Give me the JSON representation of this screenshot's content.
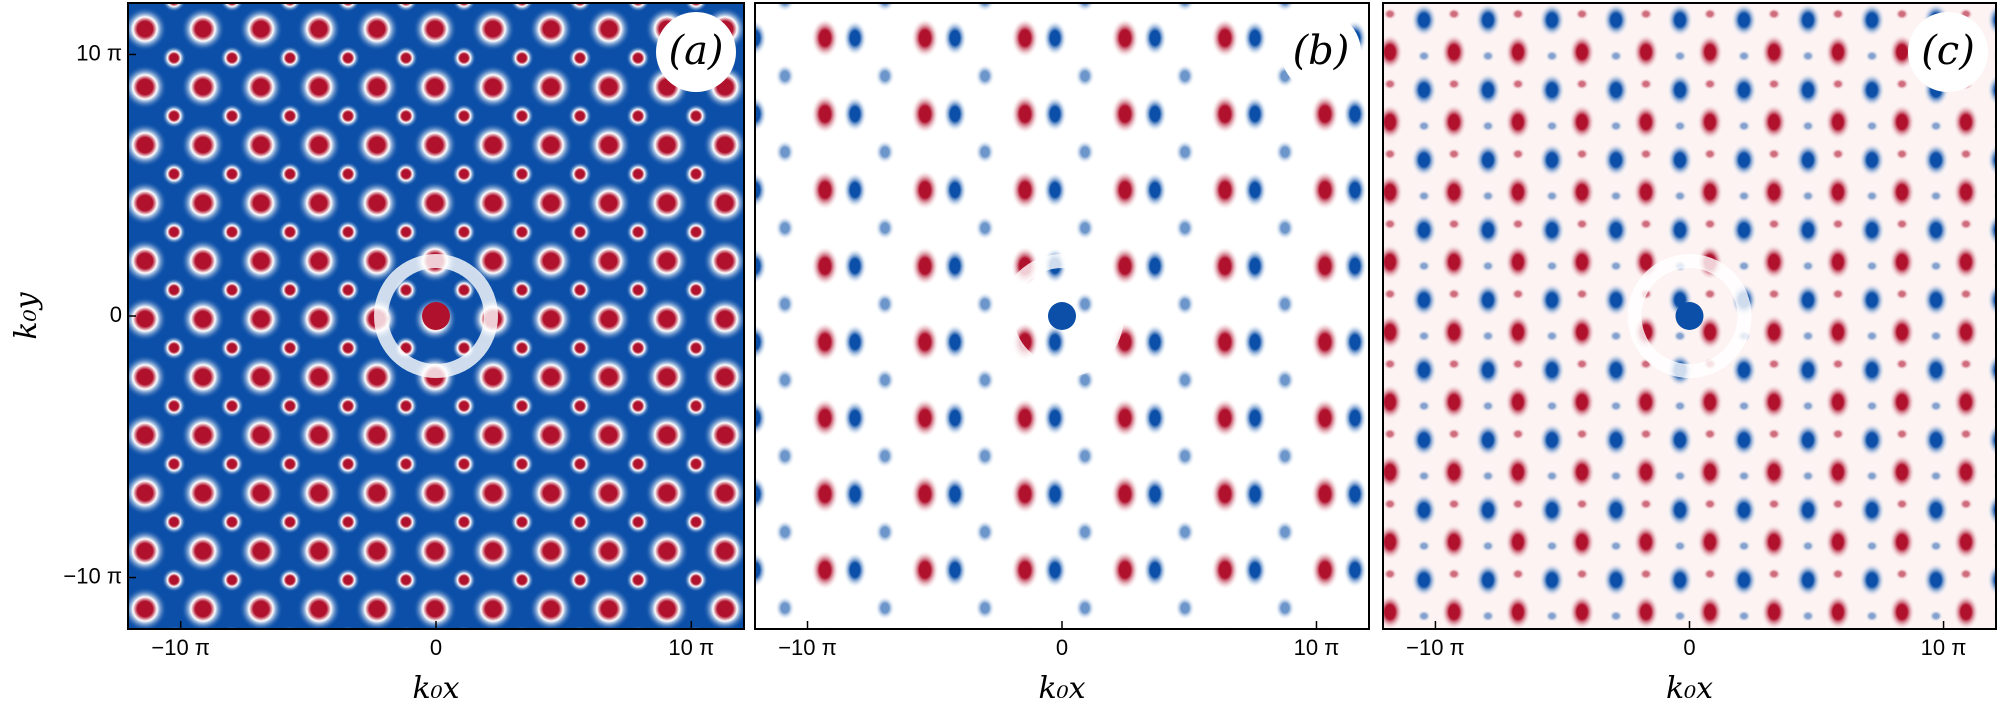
{
  "chart_data": [
    {
      "type": "heatmap",
      "panel_label": "(a)",
      "colormap": [
        "#0b4fa8",
        "#ffffff",
        "#b0122e"
      ],
      "background": "#0b4fa8",
      "xlabel": "k₀x",
      "ylabel": "k₀y",
      "xlim": [
        -37.9,
        37.9
      ],
      "xticks": [
        {
          "value": -31.416,
          "label": "−10 π"
        },
        0,
        {
          "value": 31.416,
          "label": "10 π"
        }
      ],
      "ylim": [
        -37.6,
        37.6
      ],
      "yticks": [
        {
          "value": -31.416,
          "label": "−10 π"
        },
        0,
        {
          "value": 31.416,
          "label": "10 π"
        }
      ]
    },
    {
      "type": "heatmap",
      "panel_label": "(b)",
      "colormap": [
        "#0b4fa8",
        "#ffffff",
        "#b0122e"
      ],
      "background": "#ffffff",
      "xlabel": "k₀x",
      "xlim": [
        -37.9,
        37.9
      ],
      "xticks": [
        {
          "value": -31.416,
          "label": "−10 π"
        },
        0,
        {
          "value": 31.416,
          "label": "10 π"
        }
      ],
      "ylim": [
        -37.6,
        37.6
      ]
    },
    {
      "type": "heatmap",
      "panel_label": "(c)",
      "colormap": [
        "#0b4fa8",
        "#ffffff",
        "#b0122e"
      ],
      "background": "#fdf3f3",
      "xlabel": "k₀x",
      "xlim": [
        -37.9,
        37.9
      ],
      "xticks": [
        {
          "value": -31.416,
          "label": "−10 π"
        },
        0,
        {
          "value": 31.416,
          "label": "10 π"
        }
      ],
      "ylim": [
        -37.6,
        37.6
      ]
    }
  ]
}
